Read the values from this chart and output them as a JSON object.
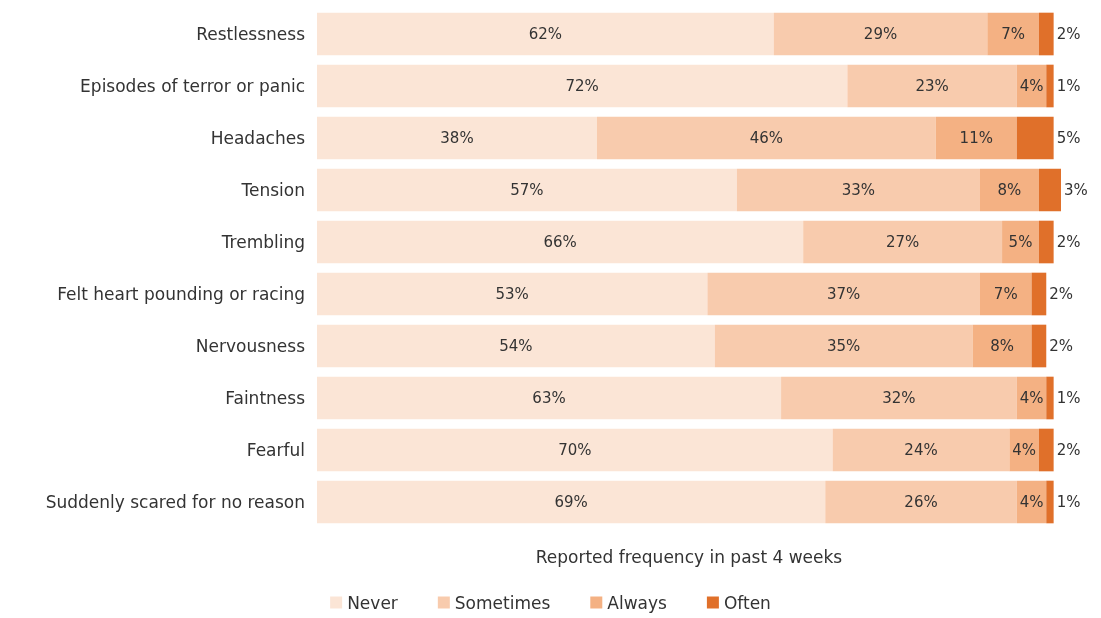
{
  "chart_data": {
    "type": "bar",
    "orientation": "horizontal",
    "stacked": true,
    "xlabel": "Reported frequency in past 4 weeks",
    "legend": "bottom",
    "grid": false,
    "categories": [
      "Restlessness",
      "Episodes of terror or panic",
      "Headaches",
      "Tension",
      "Trembling",
      "Felt heart pounding or racing",
      "Nervousness",
      "Faintness",
      "Fearful",
      "Suddenly scared for no reason"
    ],
    "series": [
      {
        "name": "Never",
        "color": "#fbe5d6",
        "values": [
          62,
          72,
          38,
          57,
          66,
          53,
          54,
          63,
          70,
          69
        ],
        "value_labels": [
          "62%",
          "72%",
          "38%",
          "57%",
          "66%",
          "53%",
          "54%",
          "63%",
          "70%",
          "69%"
        ]
      },
      {
        "name": "Sometimes",
        "color": "#f8cbad",
        "values": [
          29,
          23,
          46,
          33,
          27,
          37,
          35,
          32,
          24,
          26
        ],
        "value_labels": [
          "29%",
          "23%",
          "46%",
          "33%",
          "27%",
          "37%",
          "35%",
          "32%",
          "24%",
          "26%"
        ]
      },
      {
        "name": "Always",
        "color": "#f4b183",
        "values": [
          7,
          4,
          11,
          8,
          5,
          7,
          8,
          4,
          4,
          4
        ],
        "value_labels": [
          "7%",
          "4%",
          "11%",
          "8%",
          "5%",
          "7%",
          "8%",
          "4%",
          "4%",
          "4%"
        ]
      },
      {
        "name": "Often",
        "color": "#e0702a",
        "values": [
          2,
          1,
          5,
          3,
          2,
          2,
          2,
          1,
          2,
          1
        ],
        "value_labels": [
          "2%",
          "1%",
          "5%",
          "3%",
          "2%",
          "2%",
          "2%",
          "1%",
          "2%",
          "1%"
        ]
      }
    ]
  }
}
